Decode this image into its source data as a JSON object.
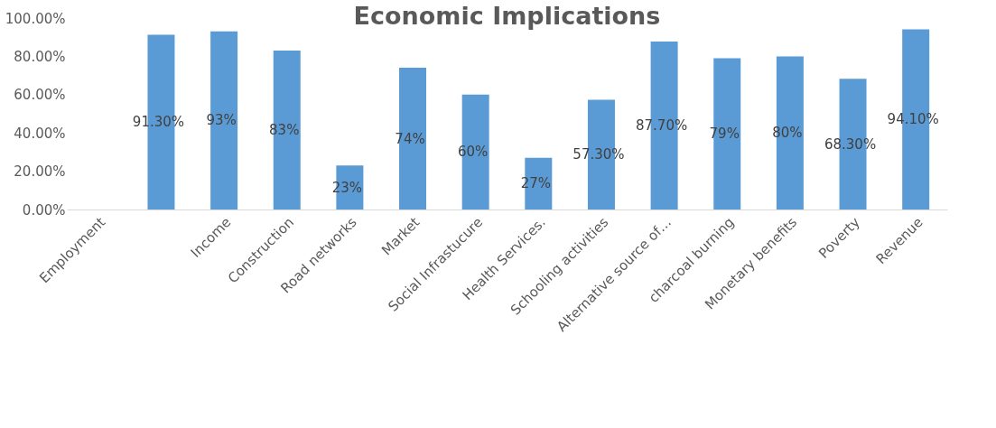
{
  "chart_data": {
    "type": "bar",
    "title": "Economic Implications",
    "categories": [
      "Employment",
      null,
      "Income",
      "Construction",
      "Road networks",
      "Market",
      "Social Infrastucure",
      "Health Services.",
      "Schooling activities",
      "Alternative source of…",
      "charcoal burning",
      "Monetary benefits",
      "Poverty",
      "Revenue"
    ],
    "values": [
      null,
      91.3,
      93,
      83,
      23,
      74,
      60,
      27,
      57.3,
      87.7,
      79,
      80,
      68.3,
      94.1
    ],
    "value_labels": [
      null,
      "91.30%",
      "93%",
      "83%",
      "23%",
      "74%",
      "60%",
      "27%",
      "57.30%",
      "87.70%",
      "79%",
      "80%",
      "68.30%",
      "94.10%"
    ],
    "color": "#5b9bd5",
    "ylim": [
      0,
      100
    ],
    "yticks": [
      {
        "value": 0,
        "label": "0.00%"
      },
      {
        "value": 20,
        "label": "20.00%"
      },
      {
        "value": 40,
        "label": "40.00%"
      },
      {
        "value": 60,
        "label": "60.00%"
      },
      {
        "value": 80,
        "label": "80.00%"
      },
      {
        "value": 100,
        "label": "100.00%"
      }
    ],
    "grid": false
  }
}
